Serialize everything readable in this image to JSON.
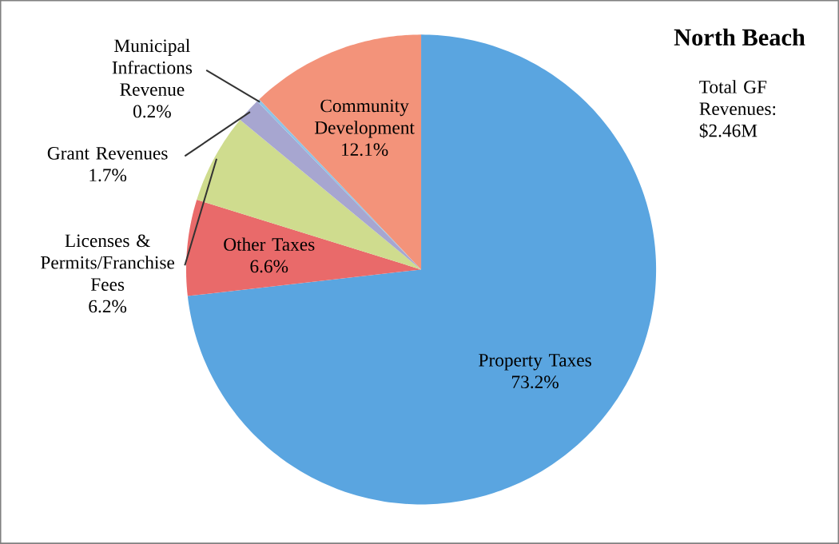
{
  "chart_data": {
    "type": "pie",
    "title": "North Beach",
    "subtitle": "Total GF Revenues: $2.46M",
    "categories": [
      "Property Taxes",
      "Other Taxes",
      "Licenses & Permits/Franchise Fees",
      "Grant Revenues",
      "Municipal Infractions Revenue",
      "Community Development"
    ],
    "values": [
      73.2,
      6.6,
      6.2,
      1.7,
      0.2,
      12.1
    ],
    "value_labels": [
      "73.2%",
      "6.6%",
      "6.2%",
      "1.7%",
      "0.2%",
      "12.1%"
    ],
    "colors": [
      "#5aa5e0",
      "#e96a6a",
      "#cfdc8e",
      "#a7a6d0",
      "#8ec3e6",
      "#f3937a"
    ]
  }
}
